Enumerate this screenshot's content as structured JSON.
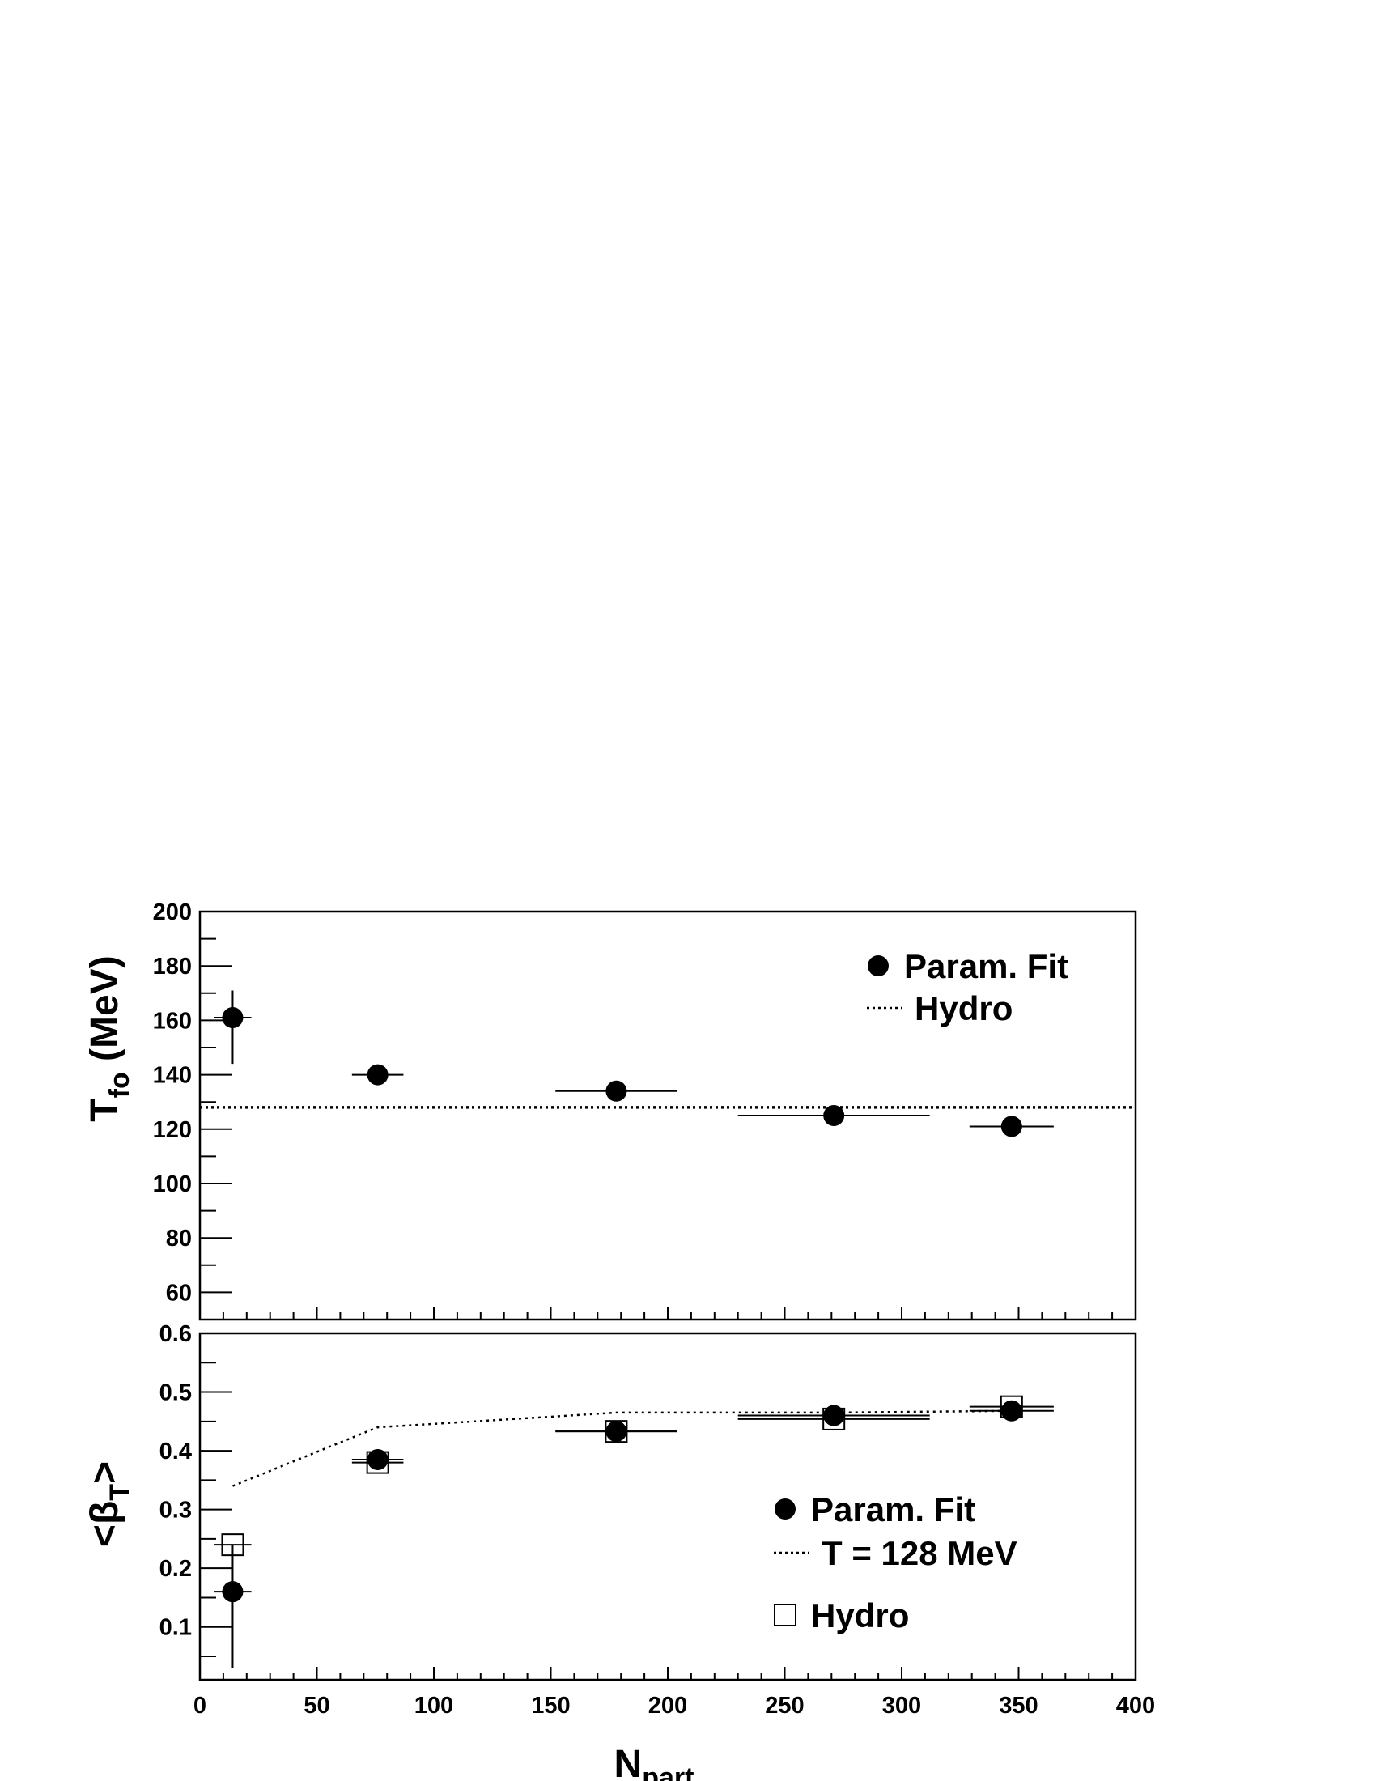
{
  "chart_data": [
    {
      "type": "scatter",
      "panel": "top",
      "ylabel": {
        "main": "T",
        "sub": "fo",
        "rest": " (MeV)"
      },
      "xlim": [
        0,
        400
      ],
      "ylim": [
        50,
        200
      ],
      "x_ticks": [
        0,
        50,
        100,
        150,
        200,
        250,
        300,
        350,
        400
      ],
      "y_ticks": [
        60,
        80,
        100,
        120,
        140,
        160,
        180,
        200
      ],
      "y_tick_labels": [
        "60",
        "80",
        "100",
        "120",
        "140",
        "160",
        "180",
        "200"
      ],
      "legend_position": "top-right",
      "series": [
        {
          "name": "Param. Fit",
          "marker": "filled-circle",
          "points": [
            {
              "x": 14,
              "y": 161,
              "xerr": 8,
              "yerr_up": 10,
              "yerr_down": 17
            },
            {
              "x": 76,
              "y": 140,
              "xerr": 11,
              "yerr_up": 0,
              "yerr_down": 0
            },
            {
              "x": 178,
              "y": 134,
              "xerr": 26,
              "yerr_up": 0,
              "yerr_down": 0
            },
            {
              "x": 271,
              "y": 125,
              "xerr": 41,
              "yerr_up": 0,
              "yerr_down": 0
            },
            {
              "x": 347,
              "y": 121,
              "xerr": 18,
              "yerr_up": 0,
              "yerr_down": 0
            }
          ]
        },
        {
          "name": "Hydro",
          "marker": "dotted-line",
          "line": {
            "x": [
              0,
              400
            ],
            "y": [
              128,
              128
            ]
          }
        }
      ]
    },
    {
      "type": "scatter",
      "panel": "bottom",
      "ylabel": {
        "main": "<β",
        "sub": "T",
        "rest": ">"
      },
      "xlabel": {
        "main": "N",
        "sub": "part"
      },
      "xlim": [
        0,
        400
      ],
      "ylim": [
        0.01,
        0.6
      ],
      "x_ticks": [
        0,
        50,
        100,
        150,
        200,
        250,
        300,
        350,
        400
      ],
      "x_tick_labels": [
        "0",
        "50",
        "100",
        "150",
        "200",
        "250",
        "300",
        "350",
        "400"
      ],
      "y_ticks": [
        0.1,
        0.2,
        0.3,
        0.4,
        0.5,
        0.6
      ],
      "y_tick_labels": [
        "0.1",
        "0.2",
        "0.3",
        "0.4",
        "0.5",
        "0.6"
      ],
      "legend_position": "bottom-right",
      "series": [
        {
          "name": "Param. Fit",
          "marker": "filled-circle",
          "points": [
            {
              "x": 14,
              "y": 0.16,
              "xerr": 8,
              "yerr_up": 0.08,
              "yerr_down": 0.13
            },
            {
              "x": 76,
              "y": 0.385,
              "xerr": 11,
              "yerr_up": 0,
              "yerr_down": 0
            },
            {
              "x": 178,
              "y": 0.433,
              "xerr": 26,
              "yerr_up": 0,
              "yerr_down": 0
            },
            {
              "x": 271,
              "y": 0.46,
              "xerr": 41,
              "yerr_up": 0,
              "yerr_down": 0
            },
            {
              "x": 347,
              "y": 0.468,
              "xerr": 18,
              "yerr_up": 0,
              "yerr_down": 0
            }
          ]
        },
        {
          "name": "T = 128 MeV",
          "marker": "dotted-line",
          "line": {
            "x": [
              14,
              76,
              150,
              178,
              271,
              347
            ],
            "y": [
              0.34,
              0.44,
              0.458,
              0.465,
              0.465,
              0.468
            ]
          }
        },
        {
          "name": "Hydro",
          "marker": "open-square",
          "points": [
            {
              "x": 14,
              "y": 0.24,
              "xerr": 8
            },
            {
              "x": 76,
              "y": 0.38,
              "xerr": 11
            },
            {
              "x": 178,
              "y": 0.433,
              "xerr": 26
            },
            {
              "x": 271,
              "y": 0.454,
              "xerr": 41
            },
            {
              "x": 347,
              "y": 0.475,
              "xerr": 18
            }
          ]
        }
      ]
    }
  ]
}
